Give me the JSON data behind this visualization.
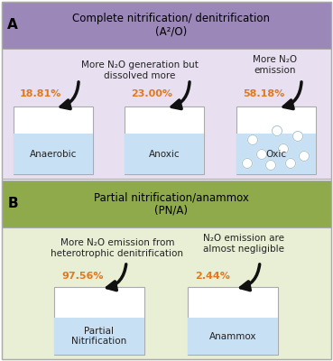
{
  "fig_width": 3.69,
  "fig_height": 4.0,
  "dpi": 100,
  "bg_color": "#ffffff",
  "outer_border": "#999999",
  "section_A": {
    "header_text": "Complete nitrification/ denitrification\n(A²/O)",
    "header_bg": "#9b87b8",
    "panel_bg": "#e8e0f0",
    "label": "A",
    "desc_left": "More N₂O generation but\ndissolved more",
    "desc_right": "More N₂O\nemission",
    "boxes": [
      {
        "label": "Anaerobic",
        "pct": "18.81%",
        "water_color": "#c8e0f4",
        "bubbles": false
      },
      {
        "label": "Anoxic",
        "pct": "23.00%",
        "water_color": "#c8e0f4",
        "bubbles": false
      },
      {
        "label": "Oxic",
        "pct": "58.18%",
        "water_color": "#c8e0f4",
        "bubbles": true
      }
    ],
    "pct_color": "#e07820"
  },
  "section_B": {
    "header_text": "Partial nitrification/anammox\n(PN/A)",
    "header_bg": "#8faa4a",
    "panel_bg": "#e8efd4",
    "label": "B",
    "desc_left": "More N₂O emission from\nheterotrophic denitrification",
    "desc_right": "N₂O emission are\nalmost negligible",
    "boxes": [
      {
        "label": "Partial\nNitrification",
        "pct": "97.56%",
        "water_color": "#c8e0f4",
        "bubbles": false
      },
      {
        "label": "Anammox",
        "pct": "2.44%",
        "water_color": "#c8e0f4",
        "bubbles": false
      }
    ],
    "pct_color": "#e07820"
  },
  "border_color": "#aaaaaa",
  "text_color": "#222222",
  "arrow_color": "#111111"
}
